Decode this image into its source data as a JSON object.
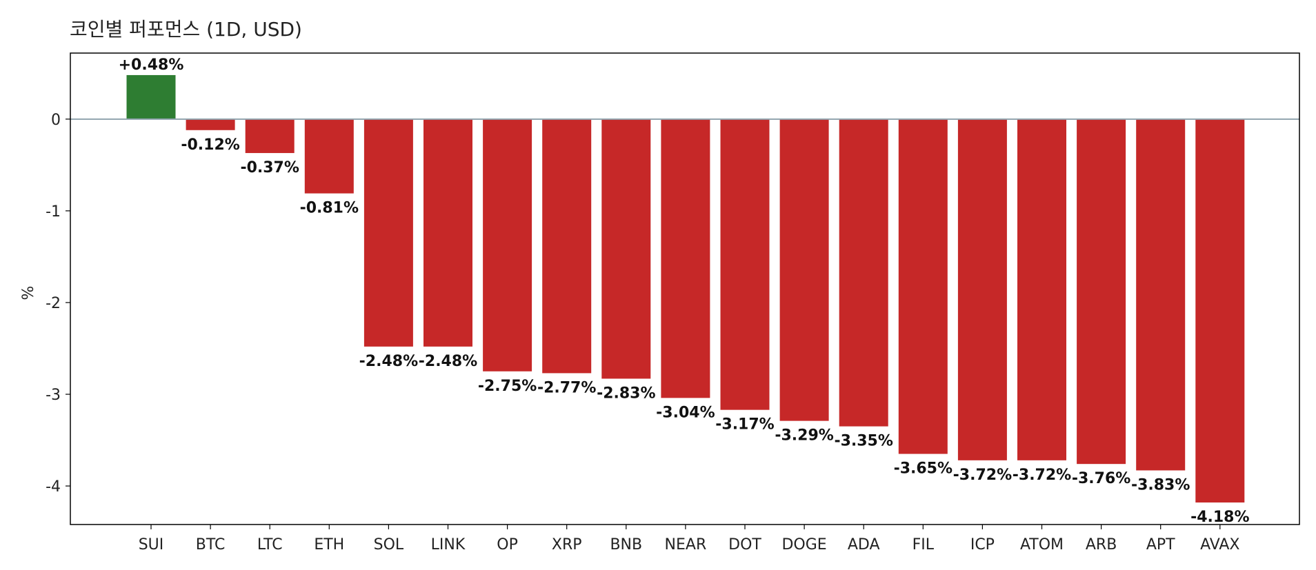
{
  "chart_data": {
    "type": "bar",
    "title": "코인별 퍼포먼스 (1D, USD)",
    "xlabel": "",
    "ylabel": "%",
    "categories": [
      "SUI",
      "BTC",
      "LTC",
      "ETH",
      "SOL",
      "LINK",
      "OP",
      "XRP",
      "BNB",
      "NEAR",
      "DOT",
      "DOGE",
      "ADA",
      "FIL",
      "ICP",
      "ATOM",
      "ARB",
      "APT",
      "AVAX"
    ],
    "values": [
      0.48,
      -0.12,
      -0.37,
      -0.81,
      -2.48,
      -2.48,
      -2.75,
      -2.77,
      -2.83,
      -3.04,
      -3.17,
      -3.29,
      -3.35,
      -3.65,
      -3.72,
      -3.72,
      -3.76,
      -3.83,
      -4.18
    ],
    "data_labels": [
      "+0.48%",
      "-0.12%",
      "-0.37%",
      "-0.81%",
      "-2.48%",
      "-2.48%",
      "-2.75%",
      "-2.77%",
      "-2.83%",
      "-3.04%",
      "-3.17%",
      "-3.29%",
      "-3.35%",
      "-3.65%",
      "-3.72%",
      "-3.72%",
      "-3.76%",
      "-3.83%",
      "-4.18%"
    ],
    "ylim": [
      -4.42,
      0.72
    ],
    "yticks": [
      0,
      -1,
      -2,
      -3,
      -4
    ],
    "ytick_labels": [
      "0",
      "-1",
      "-2",
      "-3",
      "-4"
    ],
    "grid": false,
    "zero_line": true,
    "colors": {
      "positive": "#2e7d32",
      "negative": "#c62828",
      "zero_line": "#90a4ae",
      "frame": "#000000"
    }
  }
}
